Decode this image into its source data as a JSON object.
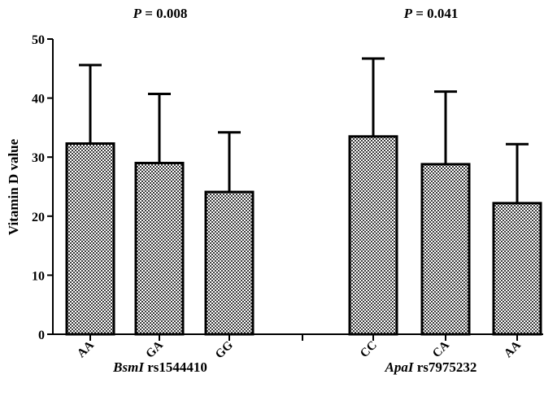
{
  "chart_data": {
    "type": "bar",
    "ylabel": "Vitamin D value",
    "ylim": [
      0,
      50
    ],
    "yticks": [
      0,
      10,
      20,
      30,
      40,
      50
    ],
    "bar_pattern": "checkered",
    "error_bars": "upper",
    "groups": [
      {
        "label_italic": "BsmI",
        "label_rest": " rs1544410",
        "p_label": "P",
        "p_value": " = 0.008",
        "categories": [
          "AA",
          "GA",
          "GG"
        ],
        "values": [
          32.3,
          29.0,
          24.1
        ],
        "errors": [
          13.3,
          11.7,
          10.1
        ]
      },
      {
        "label_italic": "ApaI",
        "label_rest": " rs7975232",
        "p_label": "P",
        "p_value": " = 0.041",
        "categories": [
          "CC",
          "CA",
          "AA"
        ],
        "values": [
          33.5,
          28.8,
          22.2
        ],
        "errors": [
          13.2,
          12.3,
          10.0
        ]
      }
    ]
  }
}
